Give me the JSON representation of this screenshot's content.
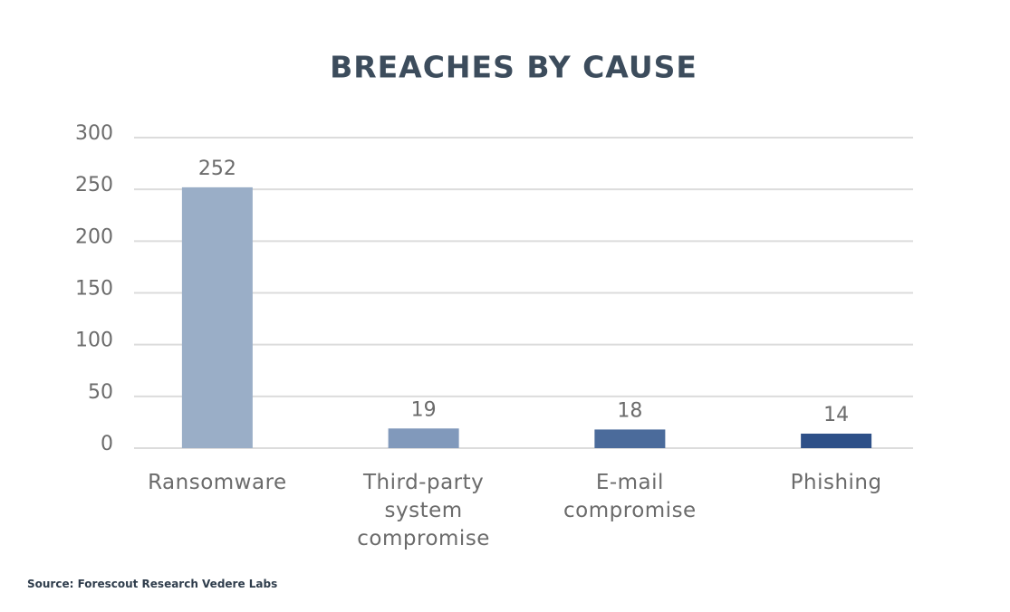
{
  "chart_data": {
    "type": "bar",
    "title": "BREACHES BY CAUSE",
    "categories": [
      "Ransomware",
      "Third-party system compromise",
      "E-mail compromise",
      "Phishing"
    ],
    "values": [
      252,
      19,
      18,
      14
    ],
    "colors": [
      "#9aaec7",
      "#8199bb",
      "#4b6b9b",
      "#2e5088"
    ],
    "ylim": [
      0,
      300
    ],
    "yticks": [
      0,
      50,
      100,
      150,
      200,
      250,
      300
    ],
    "grid": true,
    "source": "Source: Forescout Research Vedere Labs"
  }
}
